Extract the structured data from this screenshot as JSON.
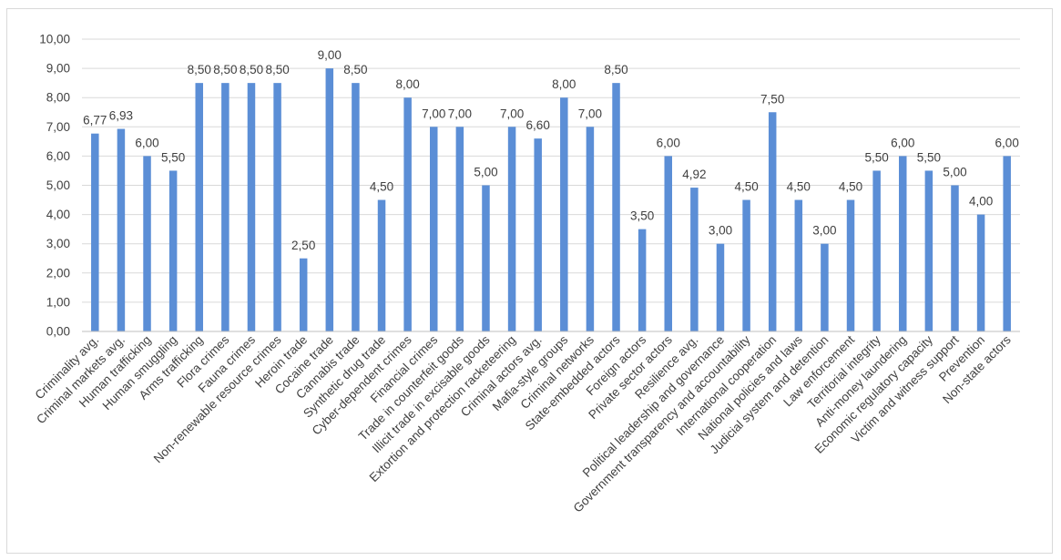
{
  "chart_data": {
    "type": "bar",
    "title": "",
    "xlabel": "",
    "ylabel": "",
    "ylim": [
      0,
      10
    ],
    "ytick_step": 1,
    "grid": true,
    "legend": "none",
    "bar_color": "#5B8ED6",
    "grid_color": "#d9d9d9",
    "categories": [
      "Criminality avg.",
      "Criminal markets avg.",
      "Human trafficking",
      "Human smuggling",
      "Arms trafficking",
      "Flora crimes",
      "Fauna crimes",
      "Non-renewable resource crimes",
      "Heroin trade",
      "Cocaine trade",
      "Cannabis trade",
      "Synthetic drug trade",
      "Cyber-dependent crimes",
      "Financial crimes",
      "Trade in counterfeit goods",
      "Illicit trade in excisable goods",
      "Extortion and protection racketeering",
      "Criminal actors avg.",
      "Mafia-style groups",
      "Criminal networks",
      "State-embedded actors",
      "Foreign actors",
      "Private sector actors",
      "Resilience avg.",
      "Political leadership and governance",
      "Government transparency and accountability",
      "International cooperation",
      "National policies and laws",
      "Judicial system and detention",
      "Law enforcement",
      "Territorial integrity",
      "Anti-money laundering",
      "Economic regulatory capacity",
      "Victim and witness support",
      "Prevention",
      "Non-state actors"
    ],
    "values": [
      6.77,
      6.93,
      6.0,
      5.5,
      8.5,
      8.5,
      8.5,
      8.5,
      2.5,
      9.0,
      8.5,
      4.5,
      8.0,
      7.0,
      7.0,
      5.0,
      7.0,
      6.6,
      8.0,
      7.0,
      8.5,
      3.5,
      6.0,
      4.92,
      3.0,
      4.5,
      7.5,
      4.5,
      3.0,
      4.5,
      5.5,
      6.0,
      5.5,
      5.0,
      4.0,
      6.0
    ],
    "data_labels": [
      "6,77",
      "6,93",
      "6,00",
      "5,50",
      "8,50",
      "8,50",
      "8,50",
      "8,50",
      "2,50",
      "9,00",
      "8,50",
      "4,50",
      "8,00",
      "7,00",
      "7,00",
      "5,00",
      "7,00",
      "6,60",
      "8,00",
      "7,00",
      "8,50",
      "3,50",
      "6,00",
      "4,92",
      "3,00",
      "4,50",
      "7,50",
      "4,50",
      "3,00",
      "4,50",
      "5,50",
      "6,00",
      "5,50",
      "5,00",
      "4,00",
      "6,00"
    ],
    "y_tick_labels": [
      "0,00",
      "1,00",
      "2,00",
      "3,00",
      "4,00",
      "5,00",
      "6,00",
      "7,00",
      "8,00",
      "9,00",
      "10,00"
    ]
  }
}
